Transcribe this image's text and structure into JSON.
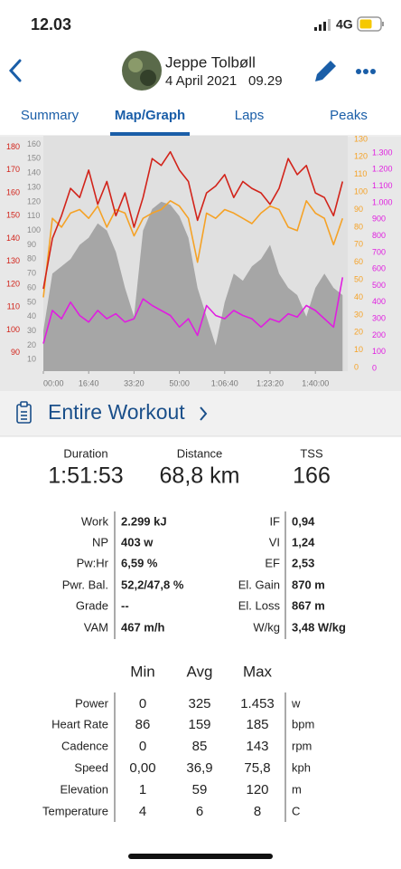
{
  "status_bar": {
    "time": "12.03",
    "network": "4G"
  },
  "header": {
    "name": "Jeppe Tolbøll",
    "date": "4 April 2021",
    "time": "09.29"
  },
  "tabs": [
    "Summary",
    "Map/Graph",
    "Laps",
    "Peaks"
  ],
  "active_tab": 1,
  "chart_data": {
    "type": "line",
    "x": [
      0,
      200,
      400,
      600,
      800,
      1000,
      1200,
      1400,
      1600,
      1800,
      2000,
      2200,
      2400,
      2600,
      2800,
      3000,
      3200,
      3400,
      3600,
      3800,
      4000,
      4200,
      4400,
      4600,
      4800,
      5000,
      5200,
      5400,
      5600,
      5800,
      6000,
      6200,
      6400,
      6600
    ],
    "xlim": [
      0,
      6713
    ],
    "xticks": [
      {
        "value": 0,
        "label": "00:00"
      },
      {
        "value": 1000,
        "label": "16:40"
      },
      {
        "value": 2000,
        "label": "33:20"
      },
      {
        "value": 3000,
        "label": "50:00"
      },
      {
        "value": 4000,
        "label": "1:06:40"
      },
      {
        "value": 5000,
        "label": "1:23:20"
      },
      {
        "value": 6000,
        "label": "1:40:00"
      }
    ],
    "ylim": [
      82,
      185
    ],
    "yticks": [
      90,
      100,
      110,
      120,
      130,
      140,
      150,
      160,
      170,
      180
    ],
    "y2lim": [
      2,
      166
    ],
    "y2ticks": [
      10,
      20,
      30,
      40,
      50,
      60,
      70,
      80,
      90,
      100,
      110,
      120,
      130,
      140,
      150,
      160
    ],
    "y3lim": [
      -2,
      132
    ],
    "y3ticks": [
      0,
      10,
      20,
      30,
      40,
      50,
      60,
      70,
      80,
      90,
      100,
      110,
      120,
      130
    ],
    "y4lim": [
      -16,
      1404
    ],
    "y4ticks": [
      0,
      100,
      200,
      300,
      400,
      500,
      600,
      700,
      800,
      900,
      {
        "value": 1000,
        "label": "1.000"
      },
      {
        "value": 1100,
        "label": "1.100"
      },
      {
        "value": 1200,
        "label": "1.200"
      },
      {
        "value": 1300,
        "label": "1.300"
      }
    ],
    "series": [
      {
        "color": "#a6a6a6",
        "axis": "y2",
        "values": [
          30,
          70,
          75,
          80,
          90,
          95,
          105,
          100,
          85,
          60,
          40,
          100,
          115,
          120,
          118,
          110,
          95,
          60,
          40,
          20,
          50,
          70,
          65,
          75,
          80,
          90,
          70,
          60,
          55,
          40,
          60,
          70,
          60,
          55
        ]
      },
      {
        "color": "#e01ee0",
        "axis": "y4",
        "values": [
          150,
          350,
          300,
          400,
          320,
          280,
          350,
          300,
          330,
          280,
          300,
          420,
          380,
          350,
          320,
          250,
          300,
          200,
          380,
          320,
          300,
          350,
          320,
          300,
          250,
          300,
          280,
          330,
          310,
          380,
          350,
          300,
          250,
          550
        ]
      },
      {
        "color": "#f5a226",
        "axis": "y3",
        "values": [
          40,
          85,
          80,
          88,
          90,
          85,
          92,
          80,
          90,
          88,
          75,
          85,
          88,
          90,
          95,
          92,
          85,
          60,
          88,
          85,
          90,
          88,
          85,
          82,
          88,
          92,
          90,
          80,
          78,
          95,
          88,
          85,
          70,
          85
        ]
      },
      {
        "color": "#d2231a",
        "axis": "y",
        "values": [
          118,
          140,
          150,
          162,
          158,
          170,
          155,
          165,
          150,
          160,
          145,
          158,
          175,
          172,
          178,
          170,
          165,
          148,
          160,
          163,
          168,
          158,
          165,
          162,
          160,
          155,
          162,
          175,
          168,
          172,
          160,
          158,
          150,
          165
        ]
      }
    ]
  },
  "section": {
    "title": "Entire Workout"
  },
  "summary": [
    {
      "label": "Duration",
      "value": "1:51:53"
    },
    {
      "label": "Distance",
      "value": "68,8 km"
    },
    {
      "label": "TSS",
      "value": "166"
    }
  ],
  "stats": {
    "left": [
      [
        "Work",
        "2.299 kJ"
      ],
      [
        "NP",
        "403 w"
      ],
      [
        "Pw:Hr",
        "6,59 %"
      ],
      [
        "Pwr. Bal.",
        "52,2/47,8 %"
      ],
      [
        "Grade",
        "--"
      ],
      [
        "VAM",
        "467 m/h"
      ]
    ],
    "right": [
      [
        "IF",
        "0,94"
      ],
      [
        "VI",
        "1,24"
      ],
      [
        "EF",
        "2,53"
      ],
      [
        "El. Gain",
        "870 m"
      ],
      [
        "El. Loss",
        "867 m"
      ],
      [
        "W/kg",
        "3,48 W/kg"
      ]
    ]
  },
  "ranges": {
    "headers": [
      "Min",
      "Avg",
      "Max"
    ],
    "rows": [
      [
        "Power",
        "0",
        "325",
        "1.453",
        "w"
      ],
      [
        "Heart Rate",
        "86",
        "159",
        "185",
        "bpm"
      ],
      [
        "Cadence",
        "0",
        "85",
        "143",
        "rpm"
      ],
      [
        "Speed",
        "0,00",
        "36,9",
        "75,8",
        "kph"
      ],
      [
        "Elevation",
        "1",
        "59",
        "120",
        "m"
      ],
      [
        "Temperature",
        "4",
        "6",
        "8",
        "C"
      ]
    ]
  }
}
